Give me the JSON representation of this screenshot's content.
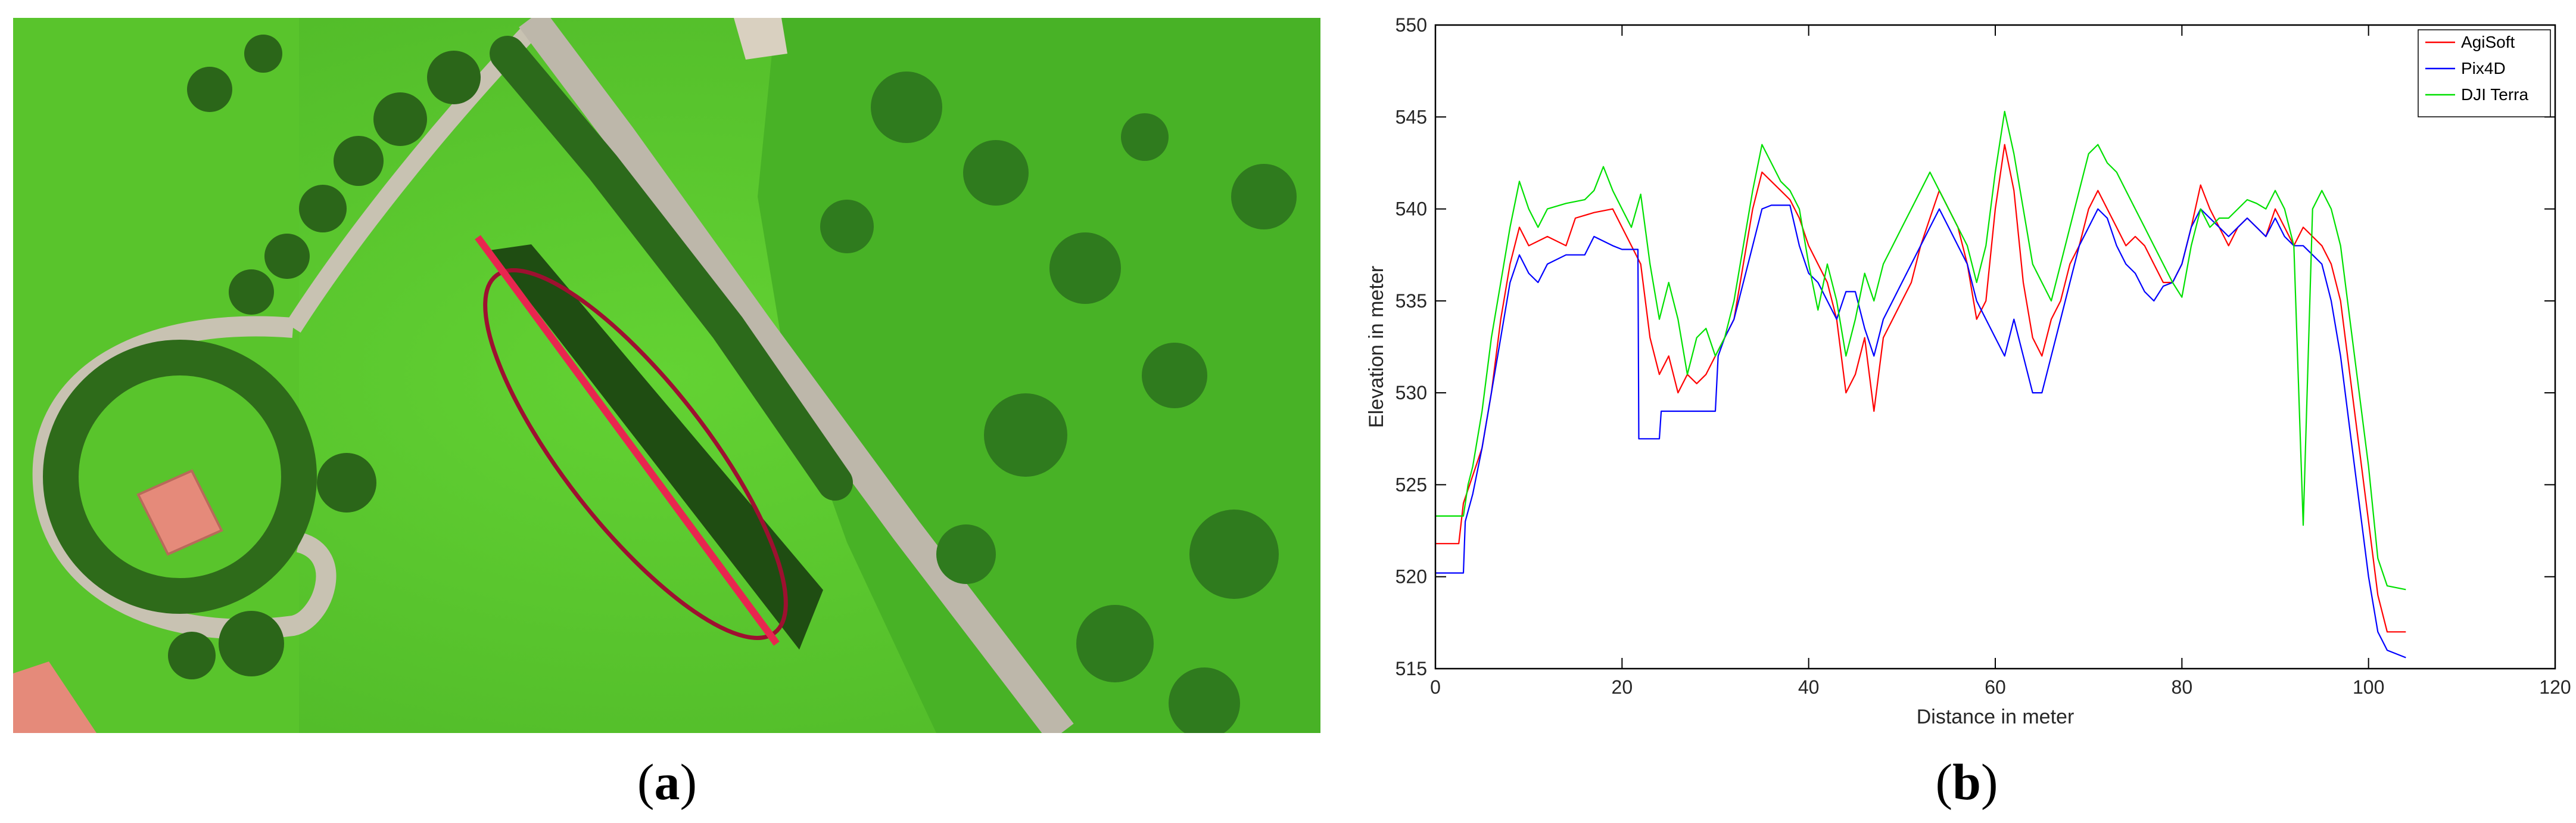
{
  "panels": {
    "a": {
      "open": "(",
      "letter": "a",
      "close": ")"
    },
    "b": {
      "open": "(",
      "letter": "b",
      "close": ")"
    }
  },
  "photo": {
    "description_icons": [
      "aerial-photo",
      "tree-row",
      "road",
      "building",
      "highlight-ellipse",
      "profile-line"
    ],
    "colors": {
      "grass": "#5fcf2f",
      "trees": "#2f6e1c",
      "road": "#c9c4b8",
      "roof": "#e58a7a",
      "ellipse": "#9e1030",
      "profile_line": "#e8264f"
    }
  },
  "chart_data": {
    "type": "line",
    "xlabel": "Distance in meter",
    "ylabel": "Elevation in meter",
    "xlim": [
      0,
      120
    ],
    "ylim": [
      515,
      550
    ],
    "xticks": [
      0,
      20,
      40,
      60,
      80,
      100,
      120
    ],
    "yticks": [
      515,
      520,
      525,
      530,
      535,
      540,
      545,
      550
    ],
    "grid": false,
    "legend_position": "top-right",
    "series": [
      {
        "name": "AgiSoft",
        "color": "#ff0000",
        "points": [
          [
            0,
            521.8
          ],
          [
            2.5,
            521.8
          ],
          [
            3,
            524
          ],
          [
            4,
            525.5
          ],
          [
            5,
            527
          ],
          [
            6,
            530
          ],
          [
            7,
            534
          ],
          [
            8,
            537
          ],
          [
            9,
            539
          ],
          [
            10,
            538
          ],
          [
            12,
            538.5
          ],
          [
            14,
            538
          ],
          [
            15,
            539.5
          ],
          [
            17,
            539.8
          ],
          [
            19,
            540
          ],
          [
            20,
            539
          ],
          [
            21,
            538
          ],
          [
            22,
            537
          ],
          [
            23,
            533
          ],
          [
            24,
            531
          ],
          [
            25,
            532
          ],
          [
            26,
            530
          ],
          [
            27,
            531
          ],
          [
            28,
            530.5
          ],
          [
            29,
            531
          ],
          [
            30,
            532
          ],
          [
            31,
            533
          ],
          [
            32,
            534
          ],
          [
            33,
            537
          ],
          [
            34,
            540
          ],
          [
            35,
            542
          ],
          [
            36,
            541.5
          ],
          [
            37,
            541
          ],
          [
            38,
            540.5
          ],
          [
            39,
            539.5
          ],
          [
            40,
            538
          ],
          [
            41,
            537
          ],
          [
            42,
            536
          ],
          [
            43,
            534
          ],
          [
            44,
            530
          ],
          [
            45,
            531
          ],
          [
            46,
            533
          ],
          [
            47,
            529
          ],
          [
            48,
            533
          ],
          [
            49,
            534
          ],
          [
            50,
            535
          ],
          [
            51,
            536
          ],
          [
            52,
            538
          ],
          [
            53,
            539.5
          ],
          [
            54,
            541
          ],
          [
            55,
            540
          ],
          [
            56,
            539
          ],
          [
            57,
            537
          ],
          [
            58,
            534
          ],
          [
            59,
            535
          ],
          [
            60,
            540
          ],
          [
            61,
            543.5
          ],
          [
            62,
            541
          ],
          [
            63,
            536
          ],
          [
            64,
            533
          ],
          [
            65,
            532
          ],
          [
            66,
            534
          ],
          [
            67,
            535
          ],
          [
            68,
            537
          ],
          [
            69,
            538
          ],
          [
            70,
            540
          ],
          [
            71,
            541
          ],
          [
            72,
            540
          ],
          [
            73,
            539
          ],
          [
            74,
            538
          ],
          [
            75,
            538.5
          ],
          [
            76,
            538
          ],
          [
            77,
            537
          ],
          [
            78,
            536
          ],
          [
            79,
            536
          ],
          [
            80,
            537
          ],
          [
            81,
            539
          ],
          [
            82,
            541.3
          ],
          [
            83,
            540
          ],
          [
            84,
            539
          ],
          [
            85,
            538
          ],
          [
            86,
            539
          ],
          [
            87,
            539.5
          ],
          [
            88,
            539
          ],
          [
            89,
            538.5
          ],
          [
            90,
            540
          ],
          [
            91,
            539
          ],
          [
            92,
            538
          ],
          [
            93,
            539
          ],
          [
            94,
            538.5
          ],
          [
            95,
            538
          ],
          [
            96,
            537
          ],
          [
            97,
            535
          ],
          [
            98,
            531
          ],
          [
            99,
            527
          ],
          [
            100,
            523
          ],
          [
            101,
            519
          ],
          [
            102,
            517
          ],
          [
            104,
            517
          ]
        ]
      },
      {
        "name": "Pix4D",
        "color": "#0000ff",
        "points": [
          [
            0,
            520.2
          ],
          [
            3,
            520.2
          ],
          [
            3.2,
            523
          ],
          [
            4,
            524.5
          ],
          [
            5,
            527
          ],
          [
            6,
            530
          ],
          [
            7,
            533
          ],
          [
            8,
            536
          ],
          [
            9,
            537.5
          ],
          [
            10,
            536.5
          ],
          [
            11,
            536
          ],
          [
            12,
            537
          ],
          [
            14,
            537.5
          ],
          [
            16,
            537.5
          ],
          [
            17,
            538.5
          ],
          [
            19,
            538
          ],
          [
            20,
            537.8
          ],
          [
            21,
            537.8
          ],
          [
            21.7,
            537.8
          ],
          [
            21.8,
            527.5
          ],
          [
            24,
            527.5
          ],
          [
            24.2,
            529
          ],
          [
            30,
            529
          ],
          [
            30.3,
            532
          ],
          [
            31,
            533
          ],
          [
            32,
            534
          ],
          [
            33,
            536
          ],
          [
            34,
            538
          ],
          [
            35,
            540
          ],
          [
            36,
            540.2
          ],
          [
            38,
            540.2
          ],
          [
            39,
            538
          ],
          [
            40,
            536.5
          ],
          [
            41,
            536
          ],
          [
            42,
            535
          ],
          [
            43,
            534
          ],
          [
            44,
            535.5
          ],
          [
            45,
            535.5
          ],
          [
            46,
            533.5
          ],
          [
            47,
            532
          ],
          [
            48,
            534
          ],
          [
            49,
            535
          ],
          [
            50,
            536
          ],
          [
            51,
            537
          ],
          [
            52,
            538
          ],
          [
            53,
            539
          ],
          [
            54,
            540
          ],
          [
            55,
            539
          ],
          [
            56,
            538
          ],
          [
            57,
            537
          ],
          [
            58,
            535
          ],
          [
            59,
            534
          ],
          [
            60,
            533
          ],
          [
            61,
            532
          ],
          [
            62,
            534
          ],
          [
            63,
            532
          ],
          [
            64,
            530
          ],
          [
            65,
            530
          ],
          [
            66,
            532
          ],
          [
            67,
            534
          ],
          [
            68,
            536
          ],
          [
            69,
            538
          ],
          [
            70,
            539
          ],
          [
            71,
            540
          ],
          [
            72,
            539.5
          ],
          [
            73,
            538
          ],
          [
            74,
            537
          ],
          [
            75,
            536.5
          ],
          [
            76,
            535.5
          ],
          [
            77,
            535
          ],
          [
            78,
            535.8
          ],
          [
            79,
            536
          ],
          [
            80,
            537
          ],
          [
            81,
            539
          ],
          [
            82,
            540
          ],
          [
            83,
            539.5
          ],
          [
            84,
            539
          ],
          [
            85,
            538.5
          ],
          [
            86,
            539
          ],
          [
            87,
            539.5
          ],
          [
            88,
            539
          ],
          [
            89,
            538.5
          ],
          [
            90,
            539.5
          ],
          [
            91,
            538.5
          ],
          [
            92,
            538
          ],
          [
            93,
            538
          ],
          [
            94,
            537.5
          ],
          [
            95,
            537
          ],
          [
            96,
            535
          ],
          [
            97,
            532
          ],
          [
            98,
            528
          ],
          [
            99,
            524
          ],
          [
            100,
            520
          ],
          [
            101,
            517
          ],
          [
            102,
            516
          ],
          [
            104,
            515.6
          ]
        ]
      },
      {
        "name": "DJI Terra",
        "color": "#00e000",
        "points": [
          [
            0,
            523.3
          ],
          [
            3,
            523.3
          ],
          [
            3.5,
            525
          ],
          [
            4,
            526
          ],
          [
            5,
            529
          ],
          [
            6,
            533
          ],
          [
            7,
            536
          ],
          [
            8,
            539
          ],
          [
            9,
            541.5
          ],
          [
            10,
            540
          ],
          [
            11,
            539
          ],
          [
            12,
            540
          ],
          [
            14,
            540.3
          ],
          [
            16,
            540.5
          ],
          [
            17,
            541
          ],
          [
            18,
            542.3
          ],
          [
            19,
            541
          ],
          [
            20,
            540
          ],
          [
            21,
            539
          ],
          [
            22,
            540.8
          ],
          [
            23,
            537
          ],
          [
            24,
            534
          ],
          [
            25,
            536
          ],
          [
            26,
            534
          ],
          [
            27,
            531
          ],
          [
            28,
            533
          ],
          [
            29,
            533.5
          ],
          [
            30,
            532
          ],
          [
            31,
            533
          ],
          [
            32,
            535
          ],
          [
            33,
            538
          ],
          [
            34,
            541
          ],
          [
            35,
            543.5
          ],
          [
            36,
            542.5
          ],
          [
            37,
            541.5
          ],
          [
            38,
            541
          ],
          [
            39,
            540
          ],
          [
            40,
            537
          ],
          [
            41,
            534.5
          ],
          [
            42,
            537
          ],
          [
            43,
            535
          ],
          [
            44,
            532
          ],
          [
            45,
            534
          ],
          [
            46,
            536.5
          ],
          [
            47,
            535
          ],
          [
            48,
            537
          ],
          [
            49,
            538
          ],
          [
            50,
            539
          ],
          [
            51,
            540
          ],
          [
            52,
            541
          ],
          [
            53,
            542
          ],
          [
            54,
            541
          ],
          [
            55,
            540
          ],
          [
            56,
            539
          ],
          [
            57,
            538
          ],
          [
            58,
            536
          ],
          [
            59,
            538
          ],
          [
            60,
            542
          ],
          [
            61,
            545.3
          ],
          [
            62,
            543
          ],
          [
            63,
            540
          ],
          [
            64,
            537
          ],
          [
            65,
            536
          ],
          [
            66,
            535
          ],
          [
            67,
            537
          ],
          [
            68,
            539
          ],
          [
            69,
            541
          ],
          [
            70,
            543
          ],
          [
            71,
            543.5
          ],
          [
            72,
            542.5
          ],
          [
            73,
            542
          ],
          [
            74,
            541
          ],
          [
            75,
            540
          ],
          [
            76,
            539
          ],
          [
            77,
            538
          ],
          [
            78,
            537
          ],
          [
            79,
            536
          ],
          [
            80,
            535.2
          ],
          [
            81,
            538
          ],
          [
            82,
            540
          ],
          [
            83,
            539
          ],
          [
            84,
            539.5
          ],
          [
            85,
            539.5
          ],
          [
            86,
            540
          ],
          [
            87,
            540.5
          ],
          [
            88,
            540.3
          ],
          [
            89,
            540
          ],
          [
            90,
            541
          ],
          [
            91,
            540
          ],
          [
            92,
            538
          ],
          [
            93,
            522.8
          ],
          [
            94,
            540
          ],
          [
            95,
            541
          ],
          [
            96,
            540
          ],
          [
            97,
            538
          ],
          [
            98,
            534
          ],
          [
            99,
            530
          ],
          [
            100,
            526
          ],
          [
            101,
            521
          ],
          [
            102,
            519.5
          ],
          [
            104,
            519.3
          ]
        ]
      }
    ]
  }
}
